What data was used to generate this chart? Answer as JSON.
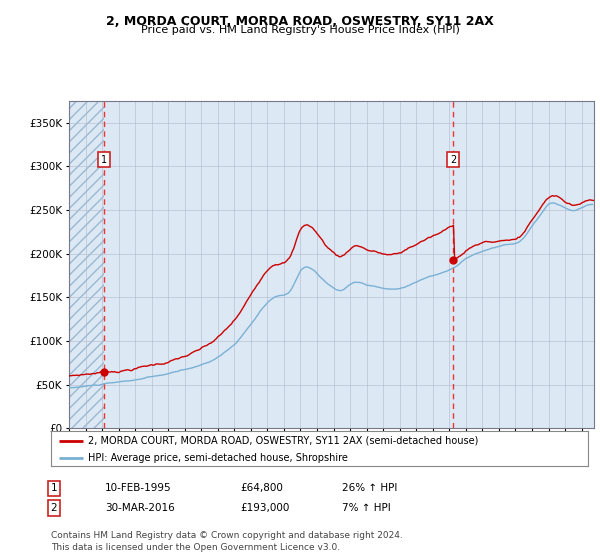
{
  "title1": "2, MORDA COURT, MORDA ROAD, OSWESTRY, SY11 2AX",
  "title2": "Price paid vs. HM Land Registry's House Price Index (HPI)",
  "ytick_values": [
    0,
    50000,
    100000,
    150000,
    200000,
    250000,
    300000,
    350000
  ],
  "ylim": [
    0,
    375000
  ],
  "sale1_year": 1995.11,
  "sale1_price": 64800,
  "sale2_year": 2016.24,
  "sale2_price": 193000,
  "legend_line1": "2, MORDA COURT, MORDA ROAD, OSWESTRY, SY11 2AX (semi-detached house)",
  "legend_line2": "HPI: Average price, semi-detached house, Shropshire",
  "table_row1": [
    "1",
    "10-FEB-1995",
    "£64,800",
    "26% ↑ HPI"
  ],
  "table_row2": [
    "2",
    "30-MAR-2016",
    "£193,000",
    "7% ↑ HPI"
  ],
  "footnote": "Contains HM Land Registry data © Crown copyright and database right 2024.\nThis data is licensed under the Open Government Licence v3.0.",
  "bg_color": "#dce9f5",
  "line_red": "#cc0000",
  "line_blue": "#7ab0d4",
  "vline_color": "#ee3333",
  "box_edge_color": "#cc2222",
  "grid_color": "#aaaacc",
  "xlim_start": 1993.0,
  "xlim_end": 2024.75
}
